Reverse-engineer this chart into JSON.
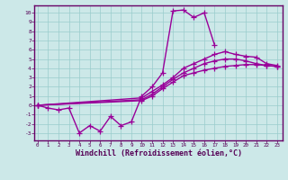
{
  "bg_color": "#cce8e8",
  "grid_color": "#99cccc",
  "line_color": "#990099",
  "marker": "+",
  "markersize": 4,
  "linewidth": 1.0,
  "xlabel": "Windchill (Refroidissement éolien,°C)",
  "xlabel_fontsize": 6.0,
  "ytick_vals": [
    -3,
    -2,
    -1,
    0,
    1,
    2,
    3,
    4,
    5,
    6,
    7,
    8,
    9,
    10
  ],
  "xtick_vals": [
    0,
    1,
    2,
    3,
    4,
    5,
    6,
    7,
    8,
    9,
    10,
    11,
    12,
    13,
    14,
    15,
    16,
    17,
    18,
    19,
    20,
    21,
    22,
    23
  ],
  "xlim": [
    -0.3,
    23.5
  ],
  "ylim": [
    -3.8,
    10.8
  ],
  "s1_x": [
    0,
    1,
    2,
    3,
    4,
    5,
    6,
    7,
    8,
    9,
    10,
    11,
    12,
    13,
    14,
    15,
    16,
    17
  ],
  "s1_y": [
    0,
    -0.3,
    -0.5,
    -0.3,
    -3.0,
    -2.2,
    -2.8,
    -1.2,
    -2.2,
    -1.8,
    1.0,
    2.0,
    3.5,
    10.2,
    10.3,
    9.5,
    10.0,
    6.5
  ],
  "s2_x": [
    0,
    10,
    11,
    12,
    13,
    14,
    15,
    16,
    17,
    18,
    19,
    20,
    21,
    22,
    23
  ],
  "s2_y": [
    0,
    0.5,
    1.0,
    1.8,
    2.5,
    3.2,
    3.5,
    3.8,
    4.0,
    4.2,
    4.3,
    4.4,
    4.4,
    4.3,
    4.2
  ],
  "s3_x": [
    0,
    10,
    11,
    12,
    13,
    14,
    15,
    16,
    17,
    18,
    19,
    20,
    21,
    22,
    23
  ],
  "s3_y": [
    0,
    0.8,
    1.5,
    2.2,
    3.0,
    4.0,
    4.5,
    5.0,
    5.5,
    5.8,
    5.5,
    5.3,
    5.2,
    4.5,
    4.3
  ],
  "s4_x": [
    0,
    10,
    11,
    12,
    13,
    14,
    15,
    16,
    17,
    18,
    19,
    20,
    21,
    22,
    23
  ],
  "s4_y": [
    0,
    0.6,
    1.2,
    2.0,
    2.8,
    3.5,
    4.0,
    4.5,
    4.8,
    5.0,
    5.0,
    4.8,
    4.5,
    4.3,
    4.2
  ]
}
